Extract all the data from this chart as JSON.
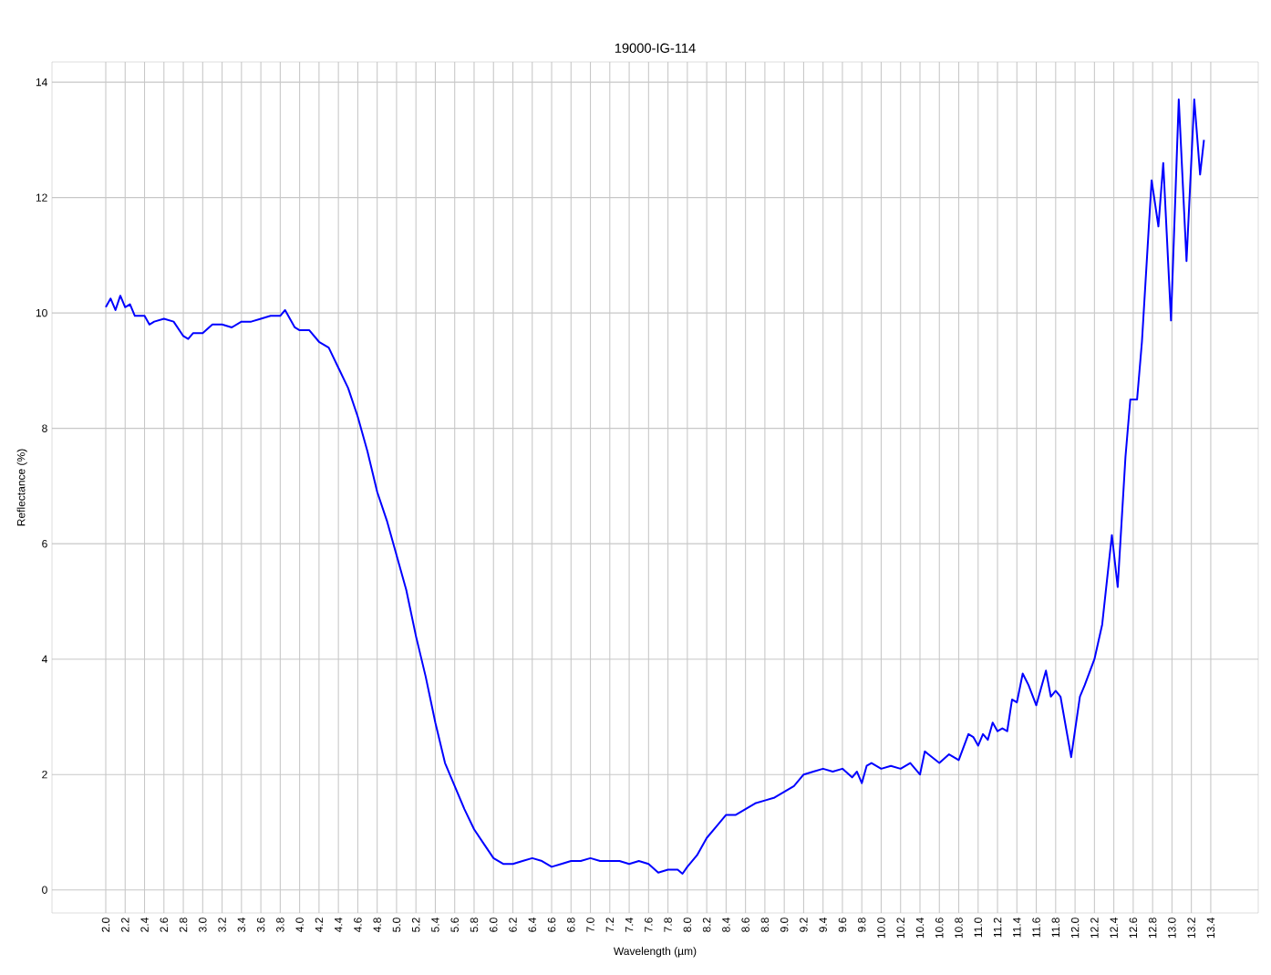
{
  "chart_data": {
    "type": "line",
    "title": "19000-IG-114",
    "xlabel": "Wavelength (µm)",
    "ylabel": "Reflectance (%)",
    "grid": true,
    "marker": "none",
    "line_style": "solid",
    "xlim": [
      1.445,
      13.89
    ],
    "ylim": [
      -0.4,
      14.35
    ],
    "xticks": [
      {
        "value": 2.0,
        "label": "2.0"
      },
      {
        "value": 2.2,
        "label": "2.2"
      },
      {
        "value": 2.4,
        "label": "2.4"
      },
      {
        "value": 2.6,
        "label": "2.6"
      },
      {
        "value": 2.8,
        "label": "2.8"
      },
      {
        "value": 3.0,
        "label": "3.0"
      },
      {
        "value": 3.2,
        "label": "3.2"
      },
      {
        "value": 3.4,
        "label": "3.4"
      },
      {
        "value": 3.6,
        "label": "3.6"
      },
      {
        "value": 3.8,
        "label": "3.8"
      },
      {
        "value": 4.0,
        "label": "4.0"
      },
      {
        "value": 4.2,
        "label": "4.2"
      },
      {
        "value": 4.4,
        "label": "4.4"
      },
      {
        "value": 4.6,
        "label": "4.6"
      },
      {
        "value": 4.8,
        "label": "4.8"
      },
      {
        "value": 5.0,
        "label": "5.0"
      },
      {
        "value": 5.2,
        "label": "5.2"
      },
      {
        "value": 5.4,
        "label": "5.4"
      },
      {
        "value": 5.6,
        "label": "5.6"
      },
      {
        "value": 5.8,
        "label": "5.8"
      },
      {
        "value": 6.0,
        "label": "6.0"
      },
      {
        "value": 6.2,
        "label": "6.2"
      },
      {
        "value": 6.4,
        "label": "6.4"
      },
      {
        "value": 6.6,
        "label": "6.6"
      },
      {
        "value": 6.8,
        "label": "6.8"
      },
      {
        "value": 7.0,
        "label": "7.0"
      },
      {
        "value": 7.2,
        "label": "7.2"
      },
      {
        "value": 7.4,
        "label": "7.4"
      },
      {
        "value": 7.6,
        "label": "7.6"
      },
      {
        "value": 7.8,
        "label": "7.8"
      },
      {
        "value": 8.0,
        "label": "8.0"
      },
      {
        "value": 8.2,
        "label": "8.2"
      },
      {
        "value": 8.4,
        "label": "8.4"
      },
      {
        "value": 8.6,
        "label": "8.6"
      },
      {
        "value": 8.8,
        "label": "8.8"
      },
      {
        "value": 9.0,
        "label": "9.0"
      },
      {
        "value": 9.2,
        "label": "9.2"
      },
      {
        "value": 9.4,
        "label": "9.4"
      },
      {
        "value": 9.6,
        "label": "9.6"
      },
      {
        "value": 9.8,
        "label": "9.8"
      },
      {
        "value": 10.0,
        "label": "10.0"
      },
      {
        "value": 10.2,
        "label": "10.2"
      },
      {
        "value": 10.4,
        "label": "10.4"
      },
      {
        "value": 10.6,
        "label": "10.6"
      },
      {
        "value": 10.8,
        "label": "10.8"
      },
      {
        "value": 11.0,
        "label": "11.0"
      },
      {
        "value": 11.2,
        "label": "11.2"
      },
      {
        "value": 11.4,
        "label": "11.4"
      },
      {
        "value": 11.6,
        "label": "11.6"
      },
      {
        "value": 11.8,
        "label": "11.8"
      },
      {
        "value": 12.0,
        "label": "12.0"
      },
      {
        "value": 12.2,
        "label": "12.2"
      },
      {
        "value": 12.4,
        "label": "12.4"
      },
      {
        "value": 12.6,
        "label": "12.6"
      },
      {
        "value": 12.8,
        "label": "12.8"
      },
      {
        "value": 13.0,
        "label": "13.0"
      },
      {
        "value": 13.2,
        "label": "13.2"
      },
      {
        "value": 13.4,
        "label": "13.4"
      }
    ],
    "yticks": [
      0,
      2,
      4,
      6,
      8,
      10,
      12,
      14
    ],
    "series": [
      {
        "color": "#0000ff",
        "x": [
          2.0,
          2.05,
          2.1,
          2.15,
          2.2,
          2.25,
          2.3,
          2.4,
          2.45,
          2.5,
          2.6,
          2.7,
          2.8,
          2.85,
          2.9,
          3.0,
          3.1,
          3.2,
          3.3,
          3.4,
          3.5,
          3.6,
          3.7,
          3.8,
          3.85,
          3.95,
          4.0,
          4.1,
          4.2,
          4.3,
          4.4,
          4.5,
          4.6,
          4.7,
          4.8,
          4.9,
          5.0,
          5.1,
          5.2,
          5.3,
          5.4,
          5.5,
          5.6,
          5.7,
          5.8,
          5.9,
          6.0,
          6.1,
          6.2,
          6.3,
          6.4,
          6.5,
          6.6,
          6.7,
          6.8,
          6.9,
          7.0,
          7.1,
          7.2,
          7.3,
          7.4,
          7.5,
          7.6,
          7.7,
          7.8,
          7.9,
          7.95,
          8.0,
          8.1,
          8.2,
          8.3,
          8.4,
          8.5,
          8.6,
          8.7,
          8.8,
          8.9,
          9.0,
          9.1,
          9.2,
          9.3,
          9.4,
          9.5,
          9.6,
          9.7,
          9.75,
          9.8,
          9.85,
          9.9,
          10.0,
          10.1,
          10.2,
          10.3,
          10.4,
          10.45,
          10.6,
          10.7,
          10.75,
          10.8,
          10.9,
          10.95,
          11.0,
          11.05,
          11.1,
          11.15,
          11.2,
          11.25,
          11.3,
          11.35,
          11.4,
          11.46,
          11.52,
          11.6,
          11.65,
          11.7,
          11.75,
          11.8,
          11.85,
          11.96,
          12.05,
          12.1,
          12.2,
          12.28,
          12.38,
          12.44,
          12.52,
          12.57,
          12.64,
          12.69,
          12.79,
          12.86,
          12.91,
          12.99,
          13.07,
          13.15,
          13.23,
          13.29,
          13.33
        ],
        "values": [
          10.1,
          10.25,
          10.05,
          10.3,
          10.1,
          10.15,
          9.95,
          9.95,
          9.8,
          9.85,
          9.9,
          9.85,
          9.6,
          9.55,
          9.65,
          9.65,
          9.8,
          9.8,
          9.75,
          9.85,
          9.85,
          9.9,
          9.95,
          9.95,
          10.05,
          9.75,
          9.7,
          9.7,
          9.5,
          9.4,
          9.05,
          8.7,
          8.2,
          7.6,
          6.9,
          6.4,
          5.8,
          5.2,
          4.4,
          3.7,
          2.9,
          2.2,
          1.8,
          1.4,
          1.05,
          0.8,
          0.55,
          0.45,
          0.45,
          0.5,
          0.55,
          0.5,
          0.4,
          0.45,
          0.5,
          0.5,
          0.55,
          0.5,
          0.5,
          0.5,
          0.45,
          0.5,
          0.45,
          0.3,
          0.35,
          0.35,
          0.28,
          0.4,
          0.6,
          0.9,
          1.1,
          1.3,
          1.3,
          1.4,
          1.5,
          1.55,
          1.6,
          1.7,
          1.8,
          2.0,
          2.05,
          2.1,
          2.05,
          2.1,
          1.95,
          2.05,
          1.85,
          2.15,
          2.2,
          2.1,
          2.15,
          2.1,
          2.2,
          2.0,
          2.4,
          2.2,
          2.35,
          2.3,
          2.25,
          2.7,
          2.65,
          2.5,
          2.7,
          2.6,
          2.9,
          2.75,
          2.8,
          2.75,
          3.3,
          3.25,
          3.75,
          3.55,
          3.2,
          3.5,
          3.8,
          3.35,
          3.45,
          3.35,
          2.3,
          3.35,
          3.55,
          4.0,
          4.6,
          6.15,
          5.25,
          7.5,
          8.5,
          8.5,
          9.5,
          12.3,
          11.5,
          12.6,
          9.87,
          13.7,
          10.9,
          13.7,
          12.4,
          13.0
        ]
      }
    ]
  }
}
